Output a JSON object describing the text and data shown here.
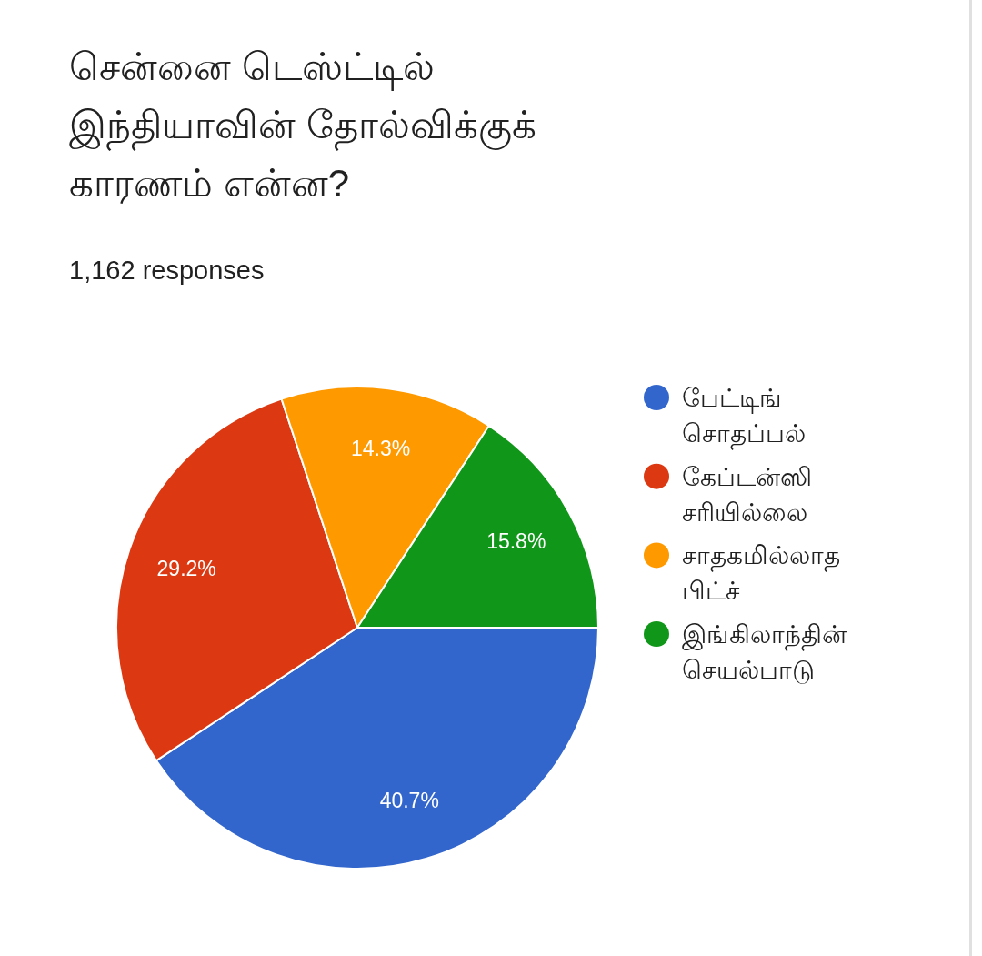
{
  "chart_data": {
    "type": "pie",
    "title": "சென்னை டெஸ்ட்டில் இந்தியாவின் தோல்விக்குக் காரணம் என்ன?",
    "subtitle": "1,162 responses",
    "categories": [
      "பேட்டிங் சொதப்பல்",
      "கேப்டன்ஸி சரியில்லை",
      "சாதகமில்லாத பிட்ச்",
      "இங்கிலாந்தின் செயல்பாடு"
    ],
    "values": [
      40.7,
      29.2,
      14.3,
      15.8
    ],
    "colors": [
      "#3366cc",
      "#dc3912",
      "#ff9900",
      "#109618"
    ],
    "value_labels": [
      "40.7%",
      "29.2%",
      "14.3%",
      "15.8%"
    ],
    "legend": "right"
  }
}
